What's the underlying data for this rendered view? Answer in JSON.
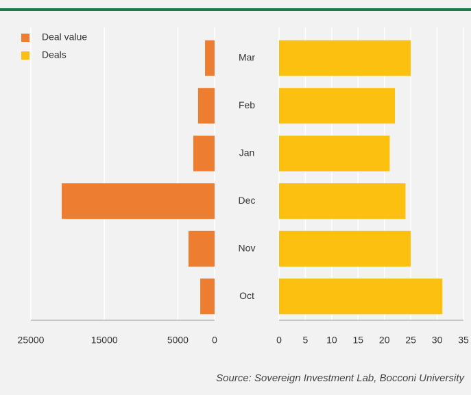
{
  "chart_data": {
    "type": "butterfly",
    "categories": [
      "Mar",
      "Feb",
      "Jan",
      "Dec",
      "Nov",
      "Oct"
    ],
    "series": [
      {
        "name": "Deal value",
        "color": "#ed7d31",
        "values": [
          1300,
          2250,
          2900,
          20800,
          3550,
          1950
        ],
        "xlim": [
          25000,
          0
        ],
        "xticks": [
          25000,
          15000,
          5000,
          0
        ]
      },
      {
        "name": "Deals",
        "color": "#fcc010",
        "values": [
          25,
          22,
          21,
          24,
          25,
          31
        ],
        "xlim": [
          0,
          35
        ],
        "xticks": [
          0,
          5,
          10,
          15,
          20,
          25,
          30,
          35
        ]
      }
    ],
    "grid": true,
    "legend": "top-left",
    "source": "Source: Sovereign Investment Lab, Bocconi University"
  }
}
